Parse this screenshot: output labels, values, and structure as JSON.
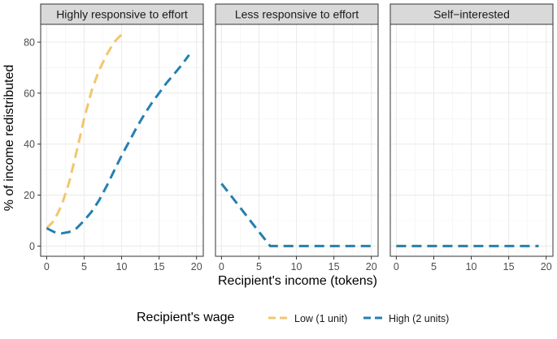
{
  "chart_data": {
    "type": "line",
    "xlabel": "Recipient's income (tokens)",
    "ylabel": "% of income redistributed",
    "xlim": [
      -0.8,
      20.9
    ],
    "ylim": [
      -4,
      87
    ],
    "x_ticks": [
      0,
      5,
      10,
      15,
      20
    ],
    "y_ticks": [
      0,
      20,
      40,
      60,
      80
    ],
    "grid": true,
    "legend_position": "bottom",
    "legend": {
      "title": "Recipient's wage",
      "entries": [
        {
          "label": "Low (1 unit)",
          "color": "#f1c76d"
        },
        {
          "label": "High (2 units)",
          "color": "#2480b1"
        }
      ]
    },
    "panels": [
      {
        "strip": "Highly responsive to effort",
        "series": [
          {
            "name": "Low (1 unit)",
            "color": "#f1c76d",
            "x": [
              0,
              1,
              2,
              3,
              4,
              5,
              6,
              7,
              8,
              9,
              10
            ],
            "y": [
              7,
              10,
              16,
              25,
              37,
              50,
              61,
              69,
              75,
              80,
              83
            ]
          },
          {
            "name": "High (2 units)",
            "color": "#2480b1",
            "x": [
              0,
              1,
              2,
              3,
              4,
              5,
              6,
              7,
              8,
              9,
              10,
              11,
              12,
              13,
              14,
              15,
              16,
              17,
              18,
              19
            ],
            "y": [
              7,
              5.5,
              5,
              5.5,
              7,
              10,
              13.5,
              18,
              23.5,
              29.5,
              35.5,
              41,
              46.5,
              51.5,
              56,
              60,
              64,
              67.5,
              71,
              75
            ]
          }
        ]
      },
      {
        "strip": "Less responsive to effort",
        "series": [
          {
            "name": "Low (1 unit)",
            "color": "#f1c76d",
            "x": [
              0,
              1,
              2,
              3,
              4,
              5,
              6,
              6.5,
              7,
              8,
              9,
              10
            ],
            "y": [
              24.5,
              20.8,
              17,
              13.2,
              9.4,
              5.6,
              1.9,
              0,
              0,
              0,
              0,
              0
            ]
          },
          {
            "name": "High (2 units)",
            "color": "#2480b1",
            "x": [
              0,
              1,
              2,
              3,
              4,
              5,
              6,
              6.5,
              7,
              8,
              9,
              10,
              11,
              12,
              13,
              14,
              15,
              16,
              17,
              18,
              19,
              20
            ],
            "y": [
              24.5,
              20.8,
              17,
              13.2,
              9.4,
              5.6,
              1.9,
              0,
              0,
              0,
              0,
              0,
              0,
              0,
              0,
              0,
              0,
              0,
              0,
              0,
              0,
              0
            ]
          }
        ]
      },
      {
        "strip": "Self−interested",
        "series": [
          {
            "name": "Low (1 unit)",
            "color": "#f1c76d",
            "x": [
              0,
              10
            ],
            "y": [
              0,
              0
            ]
          },
          {
            "name": "High (2 units)",
            "color": "#2480b1",
            "x": [
              0,
              19
            ],
            "y": [
              0,
              0
            ]
          }
        ]
      }
    ]
  }
}
